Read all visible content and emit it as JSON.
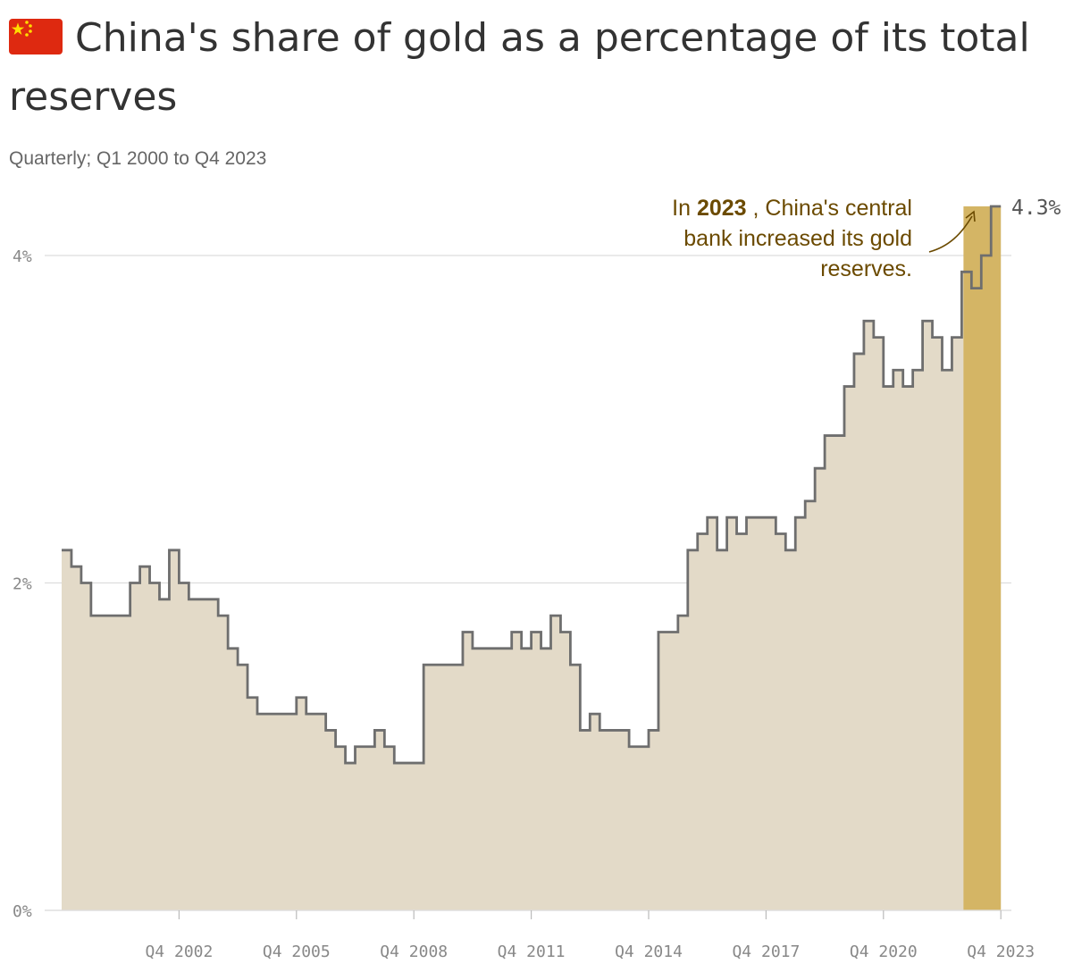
{
  "title": "China's share of gold as a percentage of its total reserves",
  "subtitle": "Quarterly; Q1 2000 to Q4 2023",
  "flag_icon": "china-flag-icon",
  "colors": {
    "area_fill": "#e3dac8",
    "line": "#6e6e6e",
    "highlight": "#d4b565",
    "highlight_light": "#e6c45e",
    "annotation": "#6b4a00",
    "grid": "#dddddd"
  },
  "annotation": {
    "line1_prefix": "In ",
    "line1_bold": "2023",
    "line1_suffix": " , China's central",
    "line2": "bank increased its gold",
    "line3": "reserves."
  },
  "end_label": "4.3%",
  "chart_data": {
    "type": "area",
    "title": "China's share of gold as a percentage of its total reserves",
    "subtitle": "Quarterly; Q1 2000 to Q4 2023",
    "xlabel": "",
    "ylabel": "",
    "ylim": [
      0,
      4.3
    ],
    "y_ticks": [
      0,
      2,
      4
    ],
    "y_tick_labels": [
      "0%",
      "2%",
      "4%"
    ],
    "x_tick_labels": [
      "Q4 2002",
      "Q4 2005",
      "Q4 2008",
      "Q4 2011",
      "Q4 2014",
      "Q4 2017",
      "Q4 2020",
      "Q4 2023"
    ],
    "highlight_period": [
      "Q1 2023",
      "Q4 2023"
    ],
    "grid": "horizontal",
    "x": [
      "Q1 2000",
      "Q2 2000",
      "Q3 2000",
      "Q4 2000",
      "Q1 2001",
      "Q2 2001",
      "Q3 2001",
      "Q4 2001",
      "Q1 2002",
      "Q2 2002",
      "Q3 2002",
      "Q4 2002",
      "Q1 2003",
      "Q2 2003",
      "Q3 2003",
      "Q4 2003",
      "Q1 2004",
      "Q2 2004",
      "Q3 2004",
      "Q4 2004",
      "Q1 2005",
      "Q2 2005",
      "Q3 2005",
      "Q4 2005",
      "Q1 2006",
      "Q2 2006",
      "Q3 2006",
      "Q4 2006",
      "Q1 2007",
      "Q2 2007",
      "Q3 2007",
      "Q4 2007",
      "Q1 2008",
      "Q2 2008",
      "Q3 2008",
      "Q4 2008",
      "Q1 2009",
      "Q2 2009",
      "Q3 2009",
      "Q4 2009",
      "Q1 2010",
      "Q2 2010",
      "Q3 2010",
      "Q4 2010",
      "Q1 2011",
      "Q2 2011",
      "Q3 2011",
      "Q4 2011",
      "Q1 2012",
      "Q2 2012",
      "Q3 2012",
      "Q4 2012",
      "Q1 2013",
      "Q2 2013",
      "Q3 2013",
      "Q4 2013",
      "Q1 2014",
      "Q2 2014",
      "Q3 2014",
      "Q4 2014",
      "Q1 2015",
      "Q2 2015",
      "Q3 2015",
      "Q4 2015",
      "Q1 2016",
      "Q2 2016",
      "Q3 2016",
      "Q4 2016",
      "Q1 2017",
      "Q2 2017",
      "Q3 2017",
      "Q4 2017",
      "Q1 2018",
      "Q2 2018",
      "Q3 2018",
      "Q4 2018",
      "Q1 2019",
      "Q2 2019",
      "Q3 2019",
      "Q4 2019",
      "Q1 2020",
      "Q2 2020",
      "Q3 2020",
      "Q4 2020",
      "Q1 2021",
      "Q2 2021",
      "Q3 2021",
      "Q4 2021",
      "Q1 2022",
      "Q2 2022",
      "Q3 2022",
      "Q4 2022",
      "Q1 2023",
      "Q2 2023",
      "Q3 2023",
      "Q4 2023"
    ],
    "values": [
      2.2,
      2.1,
      2.0,
      1.8,
      1.8,
      1.8,
      1.8,
      2.0,
      2.1,
      2.0,
      1.9,
      2.2,
      2.0,
      1.9,
      1.9,
      1.9,
      1.8,
      1.6,
      1.5,
      1.3,
      1.2,
      1.2,
      1.2,
      1.2,
      1.3,
      1.2,
      1.2,
      1.1,
      1.0,
      0.9,
      1.0,
      1.0,
      1.1,
      1.0,
      0.9,
      0.9,
      0.9,
      1.5,
      1.5,
      1.5,
      1.5,
      1.7,
      1.6,
      1.6,
      1.6,
      1.6,
      1.7,
      1.6,
      1.7,
      1.6,
      1.8,
      1.7,
      1.5,
      1.1,
      1.2,
      1.1,
      1.1,
      1.1,
      1.0,
      1.0,
      1.1,
      1.7,
      1.7,
      1.8,
      2.2,
      2.3,
      2.4,
      2.2,
      2.4,
      2.3,
      2.4,
      2.4,
      2.4,
      2.3,
      2.2,
      2.4,
      2.5,
      2.7,
      2.9,
      2.9,
      3.2,
      3.4,
      3.6,
      3.5,
      3.2,
      3.3,
      3.2,
      3.3,
      3.6,
      3.5,
      3.3,
      3.5,
      3.9,
      3.8,
      4.0,
      4.3
    ]
  }
}
